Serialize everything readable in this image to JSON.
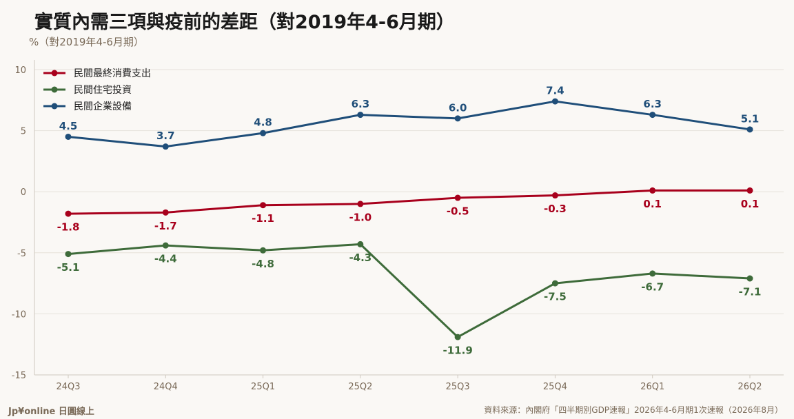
{
  "header": {
    "title": "實質內需三項與疫前的差距（對2019年4-6月期）",
    "unit": "%（對2019年4-6月期）"
  },
  "footer": {
    "brand": "Jp¥online 日圓線上",
    "source": "資料來源：內閣府「四半期別GDP速報」2026年4-6月期1次速報（2026年8月）"
  },
  "chart_data": {
    "type": "line",
    "title": "實質內需三項與疫前的差距（對2019年4-6月期）",
    "ylabel": "%（對2019年4-6月期）",
    "categories": [
      "24Q3",
      "24Q4",
      "25Q1",
      "25Q2",
      "25Q3",
      "25Q4",
      "26Q1",
      "26Q2"
    ],
    "ylim": [
      -15,
      10
    ],
    "yticks": [
      10,
      5,
      0,
      -5,
      -10,
      -15
    ],
    "grid": "horizontal",
    "legend_position": "top-left",
    "series": [
      {
        "name": "民間最終消費支出",
        "color": "#a8001c",
        "label_pos": "below",
        "values": [
          -1.8,
          -1.7,
          -1.1,
          -1.0,
          -0.5,
          -0.3,
          0.1,
          0.1
        ]
      },
      {
        "name": "民間住宅投資",
        "color": "#3e6b3a",
        "label_pos": "below",
        "values": [
          -5.1,
          -4.4,
          -4.8,
          -4.3,
          -11.9,
          -7.5,
          -6.7,
          -7.1
        ]
      },
      {
        "name": "民間企業設備",
        "color": "#1f4e79",
        "label_pos": "above",
        "values": [
          4.5,
          3.7,
          4.8,
          6.3,
          6.0,
          7.4,
          6.3,
          5.1
        ]
      }
    ]
  }
}
